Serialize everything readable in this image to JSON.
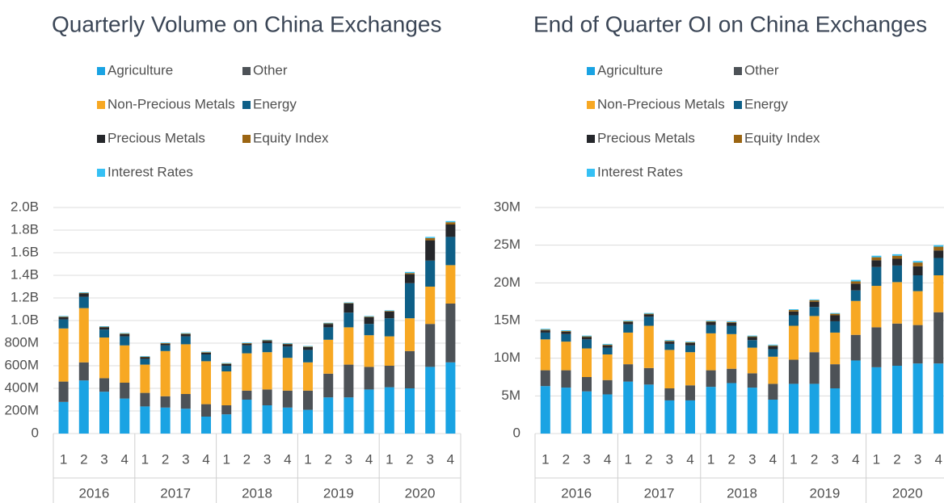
{
  "chart_data": [
    {
      "type": "bar",
      "stacked": true,
      "title": "Quarterly Volume on China Exchanges",
      "categories": [
        "1",
        "2",
        "3",
        "4",
        "1",
        "2",
        "3",
        "4",
        "1",
        "2",
        "3",
        "4",
        "1",
        "2",
        "3",
        "4",
        "1",
        "2",
        "3",
        "4"
      ],
      "groups": [
        "2016",
        "2017",
        "2018",
        "2019",
        "2020"
      ],
      "series": [
        {
          "name": "Agriculture",
          "color": "#1aa3e3",
          "values": [
            280,
            470,
            370,
            310,
            240,
            230,
            220,
            150,
            170,
            300,
            250,
            230,
            210,
            320,
            320,
            390,
            410,
            400,
            590,
            630
          ]
        },
        {
          "name": "Other",
          "color": "#4d5257",
          "values": [
            180,
            160,
            120,
            140,
            120,
            100,
            130,
            110,
            80,
            80,
            140,
            150,
            170,
            210,
            290,
            200,
            190,
            330,
            380,
            520
          ]
        },
        {
          "name": "Non-Precious Metals",
          "color": "#f7a823",
          "values": [
            470,
            480,
            360,
            330,
            250,
            400,
            440,
            380,
            300,
            330,
            330,
            290,
            250,
            300,
            330,
            280,
            260,
            290,
            330,
            340
          ]
        },
        {
          "name": "Energy",
          "color": "#0e5f87",
          "values": [
            80,
            100,
            70,
            80,
            50,
            50,
            70,
            60,
            50,
            70,
            80,
            100,
            110,
            110,
            130,
            100,
            160,
            310,
            230,
            250
          ]
        },
        {
          "name": "Precious Metals",
          "color": "#25272b",
          "values": [
            20,
            30,
            20,
            20,
            15,
            15,
            20,
            15,
            15,
            15,
            20,
            20,
            25,
            30,
            80,
            60,
            60,
            80,
            180,
            110
          ]
        },
        {
          "name": "Equity Index",
          "color": "#9b6512",
          "values": [
            5,
            5,
            5,
            5,
            5,
            5,
            5,
            5,
            5,
            5,
            5,
            5,
            5,
            5,
            5,
            5,
            5,
            10,
            20,
            20
          ]
        },
        {
          "name": "Interest Rates",
          "color": "#35c0f4",
          "values": [
            5,
            5,
            5,
            5,
            5,
            5,
            5,
            5,
            5,
            5,
            5,
            5,
            5,
            5,
            5,
            5,
            5,
            10,
            10,
            10
          ]
        }
      ],
      "ylim": [
        0,
        2000
      ],
      "yticks": [
        0,
        {
          "value": 200,
          "label": "200M"
        },
        {
          "value": 400,
          "label": "400M"
        },
        {
          "value": 600,
          "label": "600M"
        },
        {
          "value": 800,
          "label": "800M"
        },
        {
          "value": 1000,
          "label": "1.0B"
        },
        {
          "value": 1200,
          "label": "1.2B"
        },
        {
          "value": 1400,
          "label": "1.4B"
        },
        {
          "value": 1600,
          "label": "1.6B"
        },
        {
          "value": 1800,
          "label": "1.8B"
        },
        {
          "value": 2000,
          "label": "2.0B"
        }
      ],
      "grid": true
    },
    {
      "type": "bar",
      "stacked": true,
      "title": "End of Quarter OI on China Exchanges",
      "categories": [
        "1",
        "2",
        "3",
        "4",
        "1",
        "2",
        "3",
        "4",
        "1",
        "2",
        "3",
        "4",
        "1",
        "2",
        "3",
        "4",
        "1",
        "2",
        "3",
        "4"
      ],
      "groups": [
        "2016",
        "2017",
        "2018",
        "2019",
        "2020"
      ],
      "series": [
        {
          "name": "Agriculture",
          "color": "#1aa3e3",
          "values": [
            6.3,
            6.1,
            5.6,
            5.2,
            6.9,
            6.5,
            4.4,
            4.4,
            6.2,
            6.7,
            6.1,
            4.5,
            6.6,
            6.6,
            6.0,
            9.7,
            8.8,
            9.0,
            9.3,
            9.3
          ]
        },
        {
          "name": "Other",
          "color": "#4d5257",
          "values": [
            2.1,
            2.3,
            1.9,
            1.9,
            2.3,
            2.2,
            1.6,
            2.0,
            2.2,
            1.9,
            1.9,
            2.1,
            3.2,
            4.2,
            3.2,
            3.4,
            5.3,
            5.6,
            5.1,
            6.8
          ]
        },
        {
          "name": "Non-Precious Metals",
          "color": "#f7a823",
          "values": [
            4.1,
            3.8,
            3.8,
            3.4,
            4.2,
            5.6,
            5.1,
            4.4,
            4.9,
            4.6,
            3.4,
            3.6,
            4.5,
            4.8,
            4.2,
            4.5,
            5.5,
            5.5,
            4.5,
            4.9
          ]
        },
        {
          "name": "Energy",
          "color": "#0e5f87",
          "values": [
            0.9,
            1.0,
            1.2,
            0.9,
            1.1,
            1.2,
            0.8,
            0.9,
            1.1,
            1.1,
            1.0,
            1.0,
            1.4,
            1.2,
            1.5,
            1.4,
            2.5,
            2.2,
            2.1,
            2.3
          ]
        },
        {
          "name": "Precious Metals",
          "color": "#25272b",
          "values": [
            0.3,
            0.3,
            0.3,
            0.3,
            0.3,
            0.3,
            0.3,
            0.3,
            0.4,
            0.4,
            0.4,
            0.4,
            0.5,
            0.7,
            0.8,
            0.9,
            0.9,
            0.9,
            1.2,
            1.0
          ]
        },
        {
          "name": "Equity Index",
          "color": "#9b6512",
          "values": [
            0.1,
            0.1,
            0.1,
            0.1,
            0.1,
            0.1,
            0.1,
            0.1,
            0.1,
            0.1,
            0.1,
            0.1,
            0.2,
            0.2,
            0.2,
            0.3,
            0.4,
            0.4,
            0.5,
            0.5
          ]
        },
        {
          "name": "Interest Rates",
          "color": "#35c0f4",
          "values": [
            0.1,
            0.1,
            0.1,
            0.1,
            0.1,
            0.1,
            0.1,
            0.1,
            0.1,
            0.1,
            0.1,
            0.1,
            0.1,
            0.1,
            0.1,
            0.2,
            0.2,
            0.2,
            0.2,
            0.2
          ]
        }
      ],
      "ylim": [
        0,
        30
      ],
      "yticks": [
        0,
        {
          "value": 5,
          "label": "5M"
        },
        {
          "value": 10,
          "label": "10M"
        },
        {
          "value": 15,
          "label": "15M"
        },
        {
          "value": 20,
          "label": "20M"
        },
        {
          "value": 25,
          "label": "25M"
        },
        {
          "value": 30,
          "label": "30M"
        }
      ],
      "grid": true
    }
  ]
}
